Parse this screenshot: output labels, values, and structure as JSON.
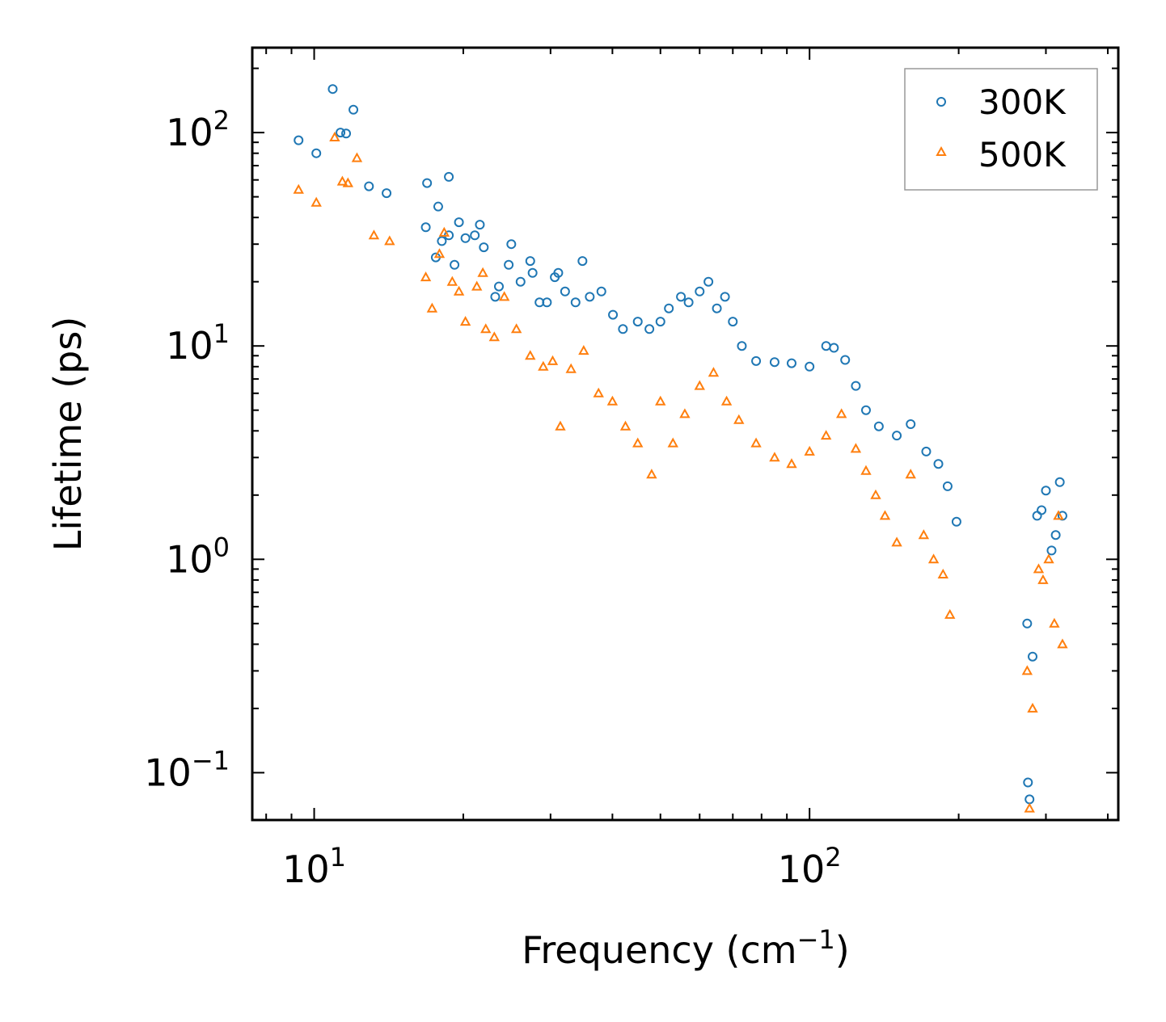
{
  "chart_data": {
    "type": "scatter",
    "title": "",
    "xlabel": "Frequency (cm",
    "xlabel_sup": "−1",
    "xlabel_end": ")",
    "ylabel": "Lifetime (ps)",
    "xscale": "log",
    "yscale": "log",
    "xlim": [
      7.5,
      420
    ],
    "ylim": [
      0.06,
      250
    ],
    "x_ticks": [
      {
        "value": 10,
        "base": "10",
        "exp": "1"
      },
      {
        "value": 100,
        "base": "10",
        "exp": "2"
      }
    ],
    "y_ticks": [
      {
        "value": 0.1,
        "base": "10",
        "exp": "−1"
      },
      {
        "value": 1,
        "base": "10",
        "exp": "0"
      },
      {
        "value": 10,
        "base": "10",
        "exp": "1"
      },
      {
        "value": 100,
        "base": "10",
        "exp": "2"
      }
    ],
    "grid": false,
    "legend_position": "top-right",
    "series": [
      {
        "name": "300K",
        "marker": "circle",
        "color": "#1f77b4",
        "points": [
          [
            9.3,
            92
          ],
          [
            10.1,
            80
          ],
          [
            10.9,
            160
          ],
          [
            11.3,
            100
          ],
          [
            11.6,
            99
          ],
          [
            12.0,
            128
          ],
          [
            12.9,
            56
          ],
          [
            14.0,
            52
          ],
          [
            16.9,
            58
          ],
          [
            17.8,
            45
          ],
          [
            18.7,
            62
          ],
          [
            16.8,
            36
          ],
          [
            17.6,
            26
          ],
          [
            18.1,
            31
          ],
          [
            18.7,
            33
          ],
          [
            19.2,
            24
          ],
          [
            19.6,
            38
          ],
          [
            20.2,
            32
          ],
          [
            21.1,
            33
          ],
          [
            21.6,
            37
          ],
          [
            22.0,
            29
          ],
          [
            23.2,
            17
          ],
          [
            23.6,
            19
          ],
          [
            24.7,
            24
          ],
          [
            25.0,
            30
          ],
          [
            26.1,
            20
          ],
          [
            27.3,
            25
          ],
          [
            27.6,
            22
          ],
          [
            28.5,
            16
          ],
          [
            29.5,
            16
          ],
          [
            30.6,
            21
          ],
          [
            31.1,
            22
          ],
          [
            32.1,
            18
          ],
          [
            33.7,
            16
          ],
          [
            34.8,
            25
          ],
          [
            36.0,
            17
          ],
          [
            38.0,
            18
          ],
          [
            40.1,
            14
          ],
          [
            42.0,
            12
          ],
          [
            45.0,
            13
          ],
          [
            47.5,
            12
          ],
          [
            50.0,
            13
          ],
          [
            52.0,
            15
          ],
          [
            55.0,
            17
          ],
          [
            57.0,
            16
          ],
          [
            60.0,
            18
          ],
          [
            62.5,
            20
          ],
          [
            65.0,
            15
          ],
          [
            67.5,
            17
          ],
          [
            70.0,
            13
          ],
          [
            73.0,
            10
          ],
          [
            78.0,
            8.5
          ],
          [
            85.0,
            8.4
          ],
          [
            92.0,
            8.3
          ],
          [
            100.0,
            8.0
          ],
          [
            108.0,
            10
          ],
          [
            112.0,
            9.8
          ],
          [
            118.0,
            8.6
          ],
          [
            124.0,
            6.5
          ],
          [
            130.0,
            5.0
          ],
          [
            138.0,
            4.2
          ],
          [
            150.0,
            3.8
          ],
          [
            160.0,
            4.3
          ],
          [
            172.0,
            3.2
          ],
          [
            182.0,
            2.8
          ],
          [
            190.0,
            2.2
          ],
          [
            198.0,
            1.5
          ],
          [
            275.0,
            0.5
          ],
          [
            282.0,
            0.35
          ],
          [
            288.0,
            1.6
          ],
          [
            294.0,
            1.7
          ],
          [
            300.0,
            2.1
          ],
          [
            308.0,
            1.1
          ],
          [
            314.0,
            1.3
          ],
          [
            320.0,
            2.3
          ],
          [
            324.0,
            1.6
          ],
          [
            276.0,
            0.09
          ],
          [
            278.0,
            0.075
          ]
        ]
      },
      {
        "name": "500K",
        "marker": "triangle",
        "color": "#ff7f0e",
        "points": [
          [
            9.3,
            54
          ],
          [
            10.1,
            47
          ],
          [
            11.0,
            95
          ],
          [
            11.4,
            59
          ],
          [
            11.7,
            58
          ],
          [
            12.2,
            76
          ],
          [
            13.2,
            33
          ],
          [
            14.2,
            31
          ],
          [
            16.8,
            21
          ],
          [
            17.3,
            15
          ],
          [
            17.9,
            27
          ],
          [
            18.3,
            34
          ],
          [
            19.0,
            20
          ],
          [
            19.6,
            18
          ],
          [
            20.2,
            13
          ],
          [
            21.3,
            19
          ],
          [
            21.9,
            22
          ],
          [
            22.2,
            12
          ],
          [
            23.1,
            11
          ],
          [
            24.2,
            17
          ],
          [
            25.6,
            12
          ],
          [
            27.3,
            9
          ],
          [
            29.0,
            8
          ],
          [
            30.3,
            8.5
          ],
          [
            31.4,
            4.2
          ],
          [
            33.0,
            7.8
          ],
          [
            35.0,
            9.5
          ],
          [
            37.5,
            6
          ],
          [
            40.0,
            5.5
          ],
          [
            42.5,
            4.2
          ],
          [
            45.0,
            3.5
          ],
          [
            48.0,
            2.5
          ],
          [
            50.0,
            5.5
          ],
          [
            53.0,
            3.5
          ],
          [
            56.0,
            4.8
          ],
          [
            60.0,
            6.5
          ],
          [
            64.0,
            7.5
          ],
          [
            68.0,
            5.5
          ],
          [
            72.0,
            4.5
          ],
          [
            78.0,
            3.5
          ],
          [
            85.0,
            3.0
          ],
          [
            92.0,
            2.8
          ],
          [
            100.0,
            3.2
          ],
          [
            108.0,
            3.8
          ],
          [
            116.0,
            4.8
          ],
          [
            124.0,
            3.3
          ],
          [
            130.0,
            2.6
          ],
          [
            136.0,
            2.0
          ],
          [
            142.0,
            1.6
          ],
          [
            150.0,
            1.2
          ],
          [
            160.0,
            2.5
          ],
          [
            170.0,
            1.3
          ],
          [
            178.0,
            1.0
          ],
          [
            186.0,
            0.85
          ],
          [
            192.0,
            0.55
          ],
          [
            275.0,
            0.3
          ],
          [
            282.0,
            0.2
          ],
          [
            290.0,
            0.9
          ],
          [
            296.0,
            0.8
          ],
          [
            304.0,
            1.0
          ],
          [
            312.0,
            0.5
          ],
          [
            318.0,
            1.6
          ],
          [
            324.0,
            0.4
          ],
          [
            278.0,
            0.068
          ]
        ]
      }
    ]
  }
}
